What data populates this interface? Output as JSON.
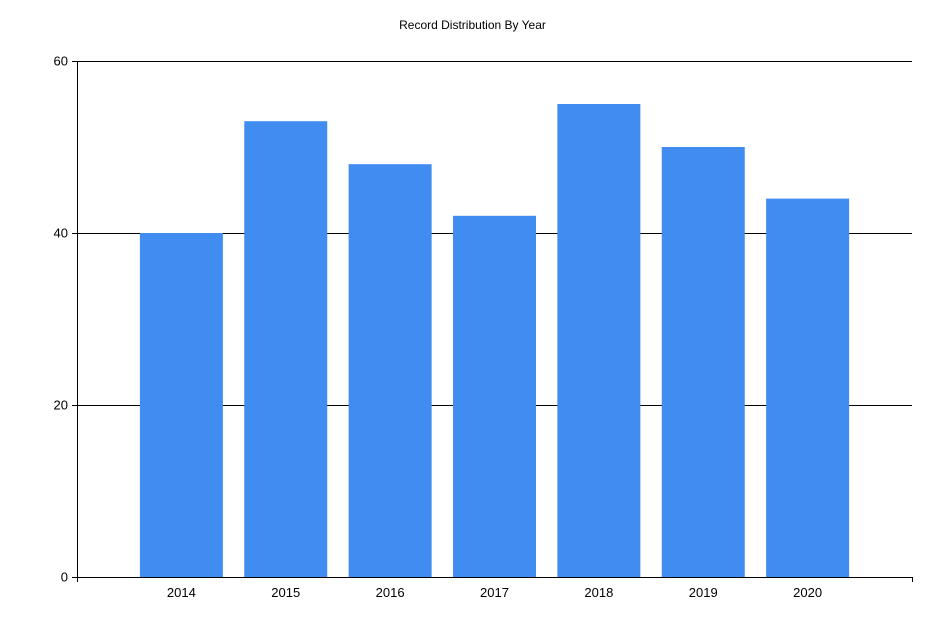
{
  "chart_data": {
    "type": "bar",
    "title": "Record Distribution By Year",
    "xlabel": "",
    "ylabel": "",
    "categories": [
      "2014",
      "2015",
      "2016",
      "2017",
      "2018",
      "2019",
      "2020"
    ],
    "values": [
      40,
      53,
      48,
      42,
      55,
      50,
      44
    ],
    "ylim": [
      0,
      60
    ],
    "yticks": [
      0,
      20,
      40,
      60
    ],
    "grid": "horizontal",
    "bar_color": "#418CF0",
    "legend": "none"
  }
}
